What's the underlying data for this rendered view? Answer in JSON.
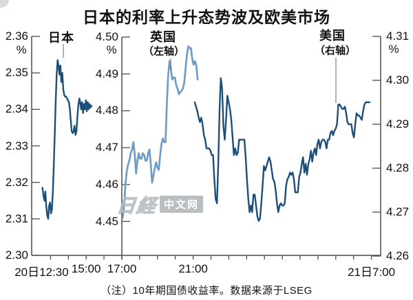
{
  "title": "日本的利率上升态势波及欧美市场",
  "footnote": "（注）10年期国债收益率。数据来源于LSEG",
  "watermark": {
    "part1": "日経",
    "part2": "中文网"
  },
  "labels": {
    "japan": "日本",
    "uk": "英国",
    "uk_sub": "（左轴）",
    "us": "美国",
    "us_sub": "（右轴）",
    "pct": "%"
  },
  "colors": {
    "dark_line": "#1b4e79",
    "light_line": "#6f9cc7",
    "axis": "#4c4c4c",
    "text": "#111111"
  },
  "chart_data": {
    "type": "line",
    "title": "日本的利率上升态势波及欧美市场",
    "note": "（注）10年期国债收益率。数据来源于LSEG",
    "grid": false,
    "legend_position": "inline-callouts",
    "x_axis": {
      "unit": "hour-of-day, 20日12:30 至 21日7:00",
      "t_range": [
        11.9,
        31.5
      ],
      "minor_tick_every_hours": 1,
      "tick_labels": [
        {
          "t": 12.5,
          "label": "20日12:30"
        },
        {
          "t": 15,
          "label": "15:00"
        },
        {
          "t": 17,
          "label": "17:00"
        },
        {
          "t": 21,
          "label": "21:00"
        },
        {
          "t": 31,
          "label": "21日7:00"
        }
      ]
    },
    "axes": {
      "japan": {
        "name": "日本",
        "unit": "%",
        "side": "far-left",
        "ylim": [
          2.3,
          2.36
        ],
        "ticks": [
          "2.36",
          "2.35",
          "2.34",
          "2.33",
          "2.32",
          "2.31",
          "2.30"
        ]
      },
      "uk": {
        "name": "英国（左轴）",
        "unit": "%",
        "side": "inner-left",
        "ylim": [
          4.45,
          4.5
        ],
        "ticks": [
          "4.50",
          "4.49",
          "4.48",
          "4.47",
          "4.46",
          "4.45"
        ]
      },
      "us": {
        "name": "美国（右轴）",
        "unit": "%",
        "side": "right",
        "ylim": [
          4.26,
          4.31
        ],
        "ticks": [
          "4.31",
          "4.30",
          "4.29",
          "4.28",
          "4.27",
          "4.26"
        ]
      }
    },
    "series": [
      {
        "name": "日本",
        "axis": "japan",
        "color_key": "dark_line",
        "t_start": 12.55,
        "t_step": 0.0529,
        "values": [
          2.3185,
          2.3165,
          2.315,
          2.3175,
          2.3135,
          2.311,
          2.31,
          2.3135,
          2.3145,
          2.3115,
          2.3125,
          2.3175,
          2.325,
          2.3335,
          2.342,
          2.3495,
          2.3535,
          2.352,
          2.3495,
          2.352,
          2.3475,
          2.35,
          2.3455,
          2.344,
          2.3435,
          2.3435,
          2.343,
          2.3425,
          2.342,
          2.34,
          2.337,
          2.334,
          2.3335,
          2.334,
          2.3355,
          2.333,
          2.334,
          2.338,
          2.341,
          2.343,
          2.342,
          2.34,
          2.342,
          2.339,
          2.3415,
          2.34,
          2.3425,
          2.3395,
          2.342,
          2.34,
          2.3415,
          2.3405,
          2.341
        ]
      },
      {
        "name": "英国",
        "axis": "uk",
        "color_key": "light_line",
        "t_start": 17.05,
        "t_step": 0.075,
        "values": [
          4.451,
          4.454,
          4.46,
          4.4635,
          4.4655,
          4.4665,
          4.4685,
          4.4695,
          4.4715,
          4.468,
          4.463,
          4.4665,
          4.4685,
          4.467,
          4.467,
          4.4685,
          4.468,
          4.4665,
          4.4665,
          4.4685,
          4.4695,
          4.4655,
          4.4605,
          4.4625,
          4.4645,
          4.466,
          4.4645,
          4.464,
          4.468,
          4.471,
          4.4725,
          4.4715,
          4.4715,
          4.482,
          4.4895,
          4.4935,
          4.4915,
          4.4885,
          4.489,
          4.489,
          4.487,
          4.486,
          4.4845,
          4.485,
          4.4855,
          4.486,
          4.4875,
          4.4915,
          4.495,
          4.4975,
          4.497,
          4.497,
          4.494,
          4.4925,
          4.4935,
          4.4925,
          4.4885
        ]
      },
      {
        "name": "美国",
        "axis": "us",
        "color_key": "dark_line",
        "t_start": 21.09,
        "t_step": 0.0732,
        "values": [
          4.295,
          4.294,
          4.293,
          4.2915,
          4.2905,
          4.2915,
          4.29,
          4.2875,
          4.2865,
          4.2845,
          4.2845,
          4.2845,
          4.284,
          4.283,
          4.283,
          4.2775,
          4.273,
          4.272,
          4.281,
          4.2935,
          4.3005,
          4.298,
          4.2895,
          4.2865,
          4.291,
          4.2965,
          4.295,
          4.2935,
          4.291,
          4.287,
          4.283,
          4.2845,
          4.283,
          4.2835,
          4.2865,
          4.2865,
          4.2865,
          4.2865,
          4.2865,
          4.2825,
          4.2775,
          4.273,
          4.27,
          4.2715,
          4.27,
          4.274,
          4.274,
          4.2715,
          4.269,
          4.268,
          4.2685,
          4.272,
          4.276,
          4.2805,
          4.2795,
          4.2805,
          4.2815,
          4.2825,
          4.2815,
          4.2795,
          4.2775,
          4.277,
          4.275,
          4.272,
          4.27,
          4.2715,
          4.272,
          4.2715,
          4.2715,
          4.272,
          4.276,
          4.2775,
          4.278,
          4.279,
          4.2785,
          4.279,
          4.2775,
          4.2745,
          4.2745,
          4.2745,
          4.278,
          4.279,
          4.281,
          4.2825,
          4.279,
          4.281,
          4.2785,
          4.281,
          4.282,
          4.284,
          4.2815,
          4.2835,
          4.2845,
          4.283,
          4.2855,
          4.2865,
          4.2845,
          4.286,
          4.2865,
          4.2865,
          4.286,
          4.2845,
          4.2865,
          4.2865,
          4.288,
          4.2885,
          4.2875,
          4.2885,
          4.289,
          4.29,
          4.2945,
          4.2945,
          4.294,
          4.2935,
          4.2935,
          4.294,
          4.2925,
          4.2905,
          4.29,
          4.29,
          4.29,
          4.288,
          4.287,
          4.29,
          4.2925,
          4.292,
          4.292,
          4.2915,
          4.291,
          4.293,
          4.2945,
          4.295,
          4.295,
          4.295,
          4.295
        ]
      }
    ]
  }
}
